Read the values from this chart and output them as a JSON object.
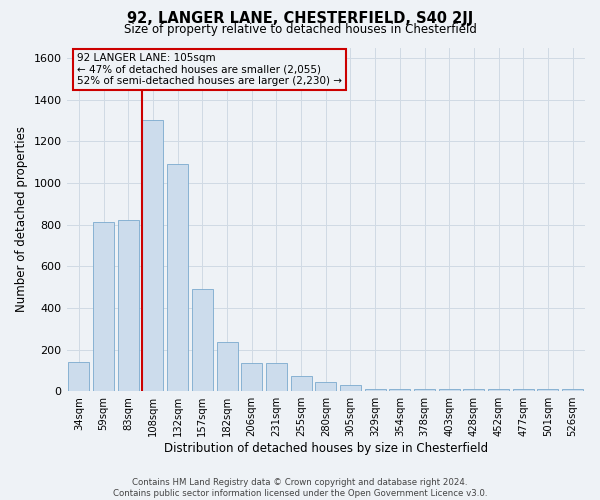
{
  "title1": "92, LANGER LANE, CHESTERFIELD, S40 2JJ",
  "title2": "Size of property relative to detached houses in Chesterfield",
  "xlabel": "Distribution of detached houses by size in Chesterfield",
  "ylabel": "Number of detached properties",
  "categories": [
    "34sqm",
    "59sqm",
    "83sqm",
    "108sqm",
    "132sqm",
    "157sqm",
    "182sqm",
    "206sqm",
    "231sqm",
    "255sqm",
    "280sqm",
    "305sqm",
    "329sqm",
    "354sqm",
    "378sqm",
    "403sqm",
    "428sqm",
    "452sqm",
    "477sqm",
    "501sqm",
    "526sqm"
  ],
  "values": [
    140,
    810,
    820,
    1300,
    1090,
    490,
    235,
    135,
    135,
    75,
    42,
    28,
    10,
    10,
    10,
    10,
    10,
    10,
    10,
    10,
    10
  ],
  "bar_color": "#ccdcec",
  "bar_edge_color": "#7aaace",
  "ylim": [
    0,
    1650
  ],
  "yticks": [
    0,
    200,
    400,
    600,
    800,
    1000,
    1200,
    1400,
    1600
  ],
  "annotation_line1": "92 LANGER LANE: 105sqm",
  "annotation_line2": "← 47% of detached houses are smaller (2,055)",
  "annotation_line3": "52% of semi-detached houses are larger (2,230) →",
  "annotation_box_color": "#cc0000",
  "vline_x": 2.575,
  "footer1": "Contains HM Land Registry data © Crown copyright and database right 2024.",
  "footer2": "Contains public sector information licensed under the Open Government Licence v3.0.",
  "bg_color": "#eef2f6",
  "grid_color": "#d0dae4"
}
